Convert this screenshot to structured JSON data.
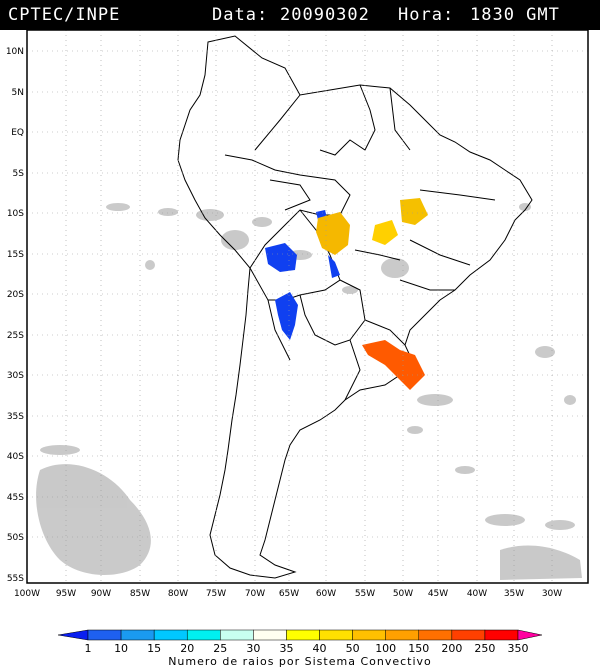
{
  "header": {
    "source": "CPTEC/INPE",
    "date_label": "Data:",
    "date": "20090302",
    "time_label": "Hora:",
    "time": "1830 GMT"
  },
  "map": {
    "lat_labels": [
      "10N",
      "5N",
      "EQ",
      "5S",
      "10S",
      "15S",
      "20S",
      "25S",
      "30S",
      "35S",
      "40S",
      "45S",
      "50S",
      "55S"
    ],
    "lon_labels": [
      "100W",
      "95W",
      "90W",
      "85W",
      "80W",
      "75W",
      "70W",
      "65W",
      "60W",
      "55W",
      "50W",
      "45W",
      "40W",
      "35W",
      "30W"
    ],
    "extent": {
      "lon_min": -100,
      "lon_max": -28,
      "lat_min": -55.5,
      "lat_max": 11.5
    },
    "colors": {
      "land": "#ffffff",
      "cloud": "#c8c8c8",
      "border": "#000000",
      "grid": "#9a9a9a"
    }
  },
  "colorbar": {
    "ticks": [
      "1",
      "10",
      "15",
      "20",
      "25",
      "30",
      "35",
      "40",
      "50",
      "100",
      "150",
      "200",
      "250",
      "350"
    ],
    "colors": [
      "#0a1ff0",
      "#1e60f0",
      "#1a9af0",
      "#00c8ff",
      "#00f0f0",
      "#c8fff0",
      "#fffff0",
      "#ffff00",
      "#ffe000",
      "#ffc000",
      "#ffa000",
      "#ff7000",
      "#ff4000",
      "#ff0000",
      "#ff00a0"
    ],
    "title": "Numero de raios por Sistema Convectivo"
  }
}
